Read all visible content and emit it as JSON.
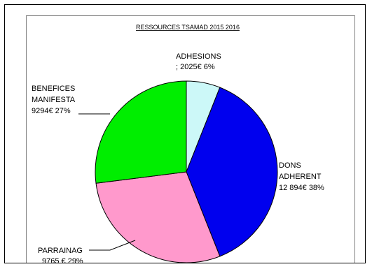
{
  "chart_data": {
    "type": "pie",
    "title": "RESSOURCES TSAMAD  2015 2016",
    "start_angle_deg": 0,
    "direction": "clockwise",
    "slices": [
      {
        "id": "adhesions",
        "percent": 6,
        "color": "#ccf8f8",
        "label_lines": [
          "ADHESIONS",
          "; 2025€ 6%"
        ]
      },
      {
        "id": "dons",
        "percent": 38,
        "color": "#0000ee",
        "label_lines": [
          "DONS",
          "ADHERENT",
          "12 894€ 38%"
        ]
      },
      {
        "id": "parrainag",
        "percent": 29,
        "color": "#ff99cc",
        "label_lines": [
          "PARRAINAG",
          "9765 € 29%"
        ]
      },
      {
        "id": "benefices",
        "percent": 27,
        "color": "#00ee00",
        "label_lines": [
          "BENEFICES",
          "MANIFESTA",
          "9294€   27%"
        ]
      }
    ]
  }
}
